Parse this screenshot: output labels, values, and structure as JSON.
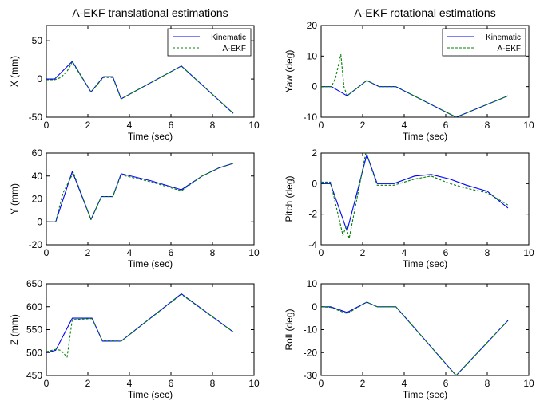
{
  "figure": {
    "left_title": "A-EKF translational estimations",
    "right_title": "A-EKF rotational estimations",
    "colors": {
      "kinematic": "#0000ff",
      "aekf": "#008000"
    }
  },
  "chart_data": [
    {
      "type": "line",
      "title": "",
      "xlabel": "Time (sec)",
      "ylabel": "X (mm)",
      "xlim": [
        0,
        10
      ],
      "ylim": [
        -50,
        70
      ],
      "xticks": [
        0,
        2,
        4,
        6,
        8,
        10
      ],
      "yticks": [
        -50,
        0,
        50
      ],
      "legend": {
        "position": "top-right",
        "entries": [
          "Kinematic",
          "A-EKF"
        ]
      },
      "series": [
        {
          "name": "Kinematic",
          "style": "solid",
          "color": "#0000ff",
          "x": [
            0,
            0.4,
            1.25,
            2.15,
            2.75,
            3.2,
            3.6,
            6.5,
            9.0
          ],
          "y": [
            0,
            0,
            23,
            -17,
            3,
            3,
            -26,
            17,
            -45
          ]
        },
        {
          "name": "A-EKF",
          "style": "dashed",
          "color": "#008000",
          "x": [
            0,
            0.4,
            0.7,
            1.0,
            1.25,
            2.15,
            2.75,
            3.2,
            3.6,
            6.5,
            9.0
          ],
          "y": [
            -1,
            -1,
            2,
            10,
            22,
            -17,
            2,
            2,
            -26,
            17,
            -45
          ]
        }
      ]
    },
    {
      "type": "line",
      "title": "",
      "xlabel": "Time (sec)",
      "ylabel": "Y (mm)",
      "xlim": [
        0,
        10
      ],
      "ylim": [
        -20,
        60
      ],
      "xticks": [
        0,
        2,
        4,
        6,
        8,
        10
      ],
      "yticks": [
        -20,
        0,
        20,
        40,
        60
      ],
      "series": [
        {
          "name": "Kinematic",
          "style": "solid",
          "color": "#0000ff",
          "x": [
            0,
            0.45,
            1.25,
            2.15,
            2.65,
            3.2,
            3.6,
            5.0,
            6.5,
            7.5,
            8.3,
            9.0
          ],
          "y": [
            0,
            0,
            44,
            2,
            22,
            22,
            42,
            36,
            28,
            40,
            47,
            51
          ]
        },
        {
          "name": "A-EKF",
          "style": "dashed",
          "color": "#008000",
          "x": [
            0,
            0.45,
            0.8,
            1.3,
            2.15,
            2.65,
            3.2,
            3.6,
            5.0,
            6.5,
            7.5,
            8.3,
            9.0
          ],
          "y": [
            0,
            0,
            25,
            43,
            2,
            22,
            22,
            41,
            35,
            27,
            40,
            47,
            51
          ]
        }
      ]
    },
    {
      "type": "line",
      "title": "",
      "xlabel": "Time (sec)",
      "ylabel": "Z (mm)",
      "xlim": [
        0,
        10
      ],
      "ylim": [
        450,
        650
      ],
      "xticks": [
        0,
        2,
        4,
        6,
        8,
        10
      ],
      "yticks": [
        450,
        500,
        550,
        600,
        650
      ],
      "series": [
        {
          "name": "Kinematic",
          "style": "solid",
          "color": "#0000ff",
          "x": [
            0,
            0.45,
            1.25,
            2.2,
            2.7,
            3.6,
            6.5,
            9.0
          ],
          "y": [
            500,
            505,
            575,
            575,
            525,
            525,
            628,
            545
          ]
        },
        {
          "name": "A-EKF",
          "style": "dashed",
          "color": "#008000",
          "x": [
            0,
            0.45,
            0.7,
            1.0,
            1.25,
            2.2,
            2.7,
            3.6,
            6.5,
            9.0
          ],
          "y": [
            502,
            507,
            505,
            490,
            572,
            574,
            526,
            525,
            627,
            545
          ]
        }
      ]
    },
    {
      "type": "line",
      "title": "",
      "xlabel": "Time (sec)",
      "ylabel": "Yaw (deg)",
      "xlim": [
        0,
        10
      ],
      "ylim": [
        -10,
        20
      ],
      "xticks": [
        0,
        2,
        4,
        6,
        8,
        10
      ],
      "yticks": [
        -10,
        0,
        10,
        20
      ],
      "legend": {
        "position": "top-right",
        "entries": [
          "Kinematic",
          "A-EKF"
        ]
      },
      "series": [
        {
          "name": "Kinematic",
          "style": "solid",
          "color": "#0000ff",
          "x": [
            0,
            0.5,
            1.25,
            2.2,
            2.8,
            3.6,
            6.5,
            9.0
          ],
          "y": [
            0,
            0,
            -3,
            2,
            0,
            0,
            -10,
            -3
          ]
        },
        {
          "name": "A-EKF",
          "style": "dashed",
          "color": "#008000",
          "x": [
            0,
            0.5,
            0.7,
            0.95,
            1.1,
            1.25,
            2.2,
            2.8,
            3.6,
            6.5,
            9.0
          ],
          "y": [
            0,
            0,
            3,
            10.5,
            0,
            -3,
            2,
            0,
            0,
            -10,
            -3
          ]
        }
      ]
    },
    {
      "type": "line",
      "title": "",
      "xlabel": "Time (sec)",
      "ylabel": "Pitch (deg)",
      "xlim": [
        0,
        10
      ],
      "ylim": [
        -4,
        2
      ],
      "xticks": [
        0,
        2,
        4,
        6,
        8,
        10
      ],
      "yticks": [
        -4,
        -2,
        0,
        2
      ],
      "series": [
        {
          "name": "Kinematic",
          "style": "solid",
          "color": "#0000ff",
          "x": [
            0,
            0.45,
            1.25,
            2.2,
            2.7,
            3.5,
            4.5,
            5.3,
            6.2,
            7.0,
            8.0,
            9.0
          ],
          "y": [
            0,
            0,
            -3.1,
            1.9,
            0,
            0,
            0.5,
            0.6,
            0.3,
            -0.1,
            -0.5,
            -1.6
          ]
        },
        {
          "name": "A-EKF",
          "style": "dashed",
          "color": "#008000",
          "x": [
            0,
            0.45,
            0.9,
            1.05,
            1.2,
            1.35,
            2.15,
            2.3,
            2.7,
            3.5,
            4.5,
            5.3,
            6.2,
            7.0,
            8.0,
            9.0
          ],
          "y": [
            0.1,
            0.1,
            -2.5,
            -3.4,
            -2.8,
            -3.6,
            2.0,
            1.5,
            -0.1,
            -0.1,
            0.3,
            0.5,
            0.0,
            -0.3,
            -0.6,
            -1.4
          ]
        }
      ]
    },
    {
      "type": "line",
      "title": "",
      "xlabel": "Time (sec)",
      "ylabel": "Roll (deg)",
      "xlim": [
        0,
        10
      ],
      "ylim": [
        -30,
        10
      ],
      "xticks": [
        0,
        2,
        4,
        6,
        8,
        10
      ],
      "yticks": [
        -30,
        -20,
        -10,
        0,
        10
      ],
      "series": [
        {
          "name": "Kinematic",
          "style": "solid",
          "color": "#0000ff",
          "x": [
            0,
            0.45,
            1.25,
            2.2,
            2.7,
            3.6,
            6.5,
            9.0
          ],
          "y": [
            0,
            0,
            -2.5,
            2,
            0,
            0,
            -30,
            -6
          ]
        },
        {
          "name": "A-EKF",
          "style": "dashed",
          "color": "#008000",
          "x": [
            0,
            0.45,
            1.25,
            2.2,
            2.7,
            3.6,
            6.5,
            9.0
          ],
          "y": [
            0,
            -0.3,
            -3,
            2,
            0,
            0,
            -30,
            -6
          ]
        }
      ]
    }
  ]
}
